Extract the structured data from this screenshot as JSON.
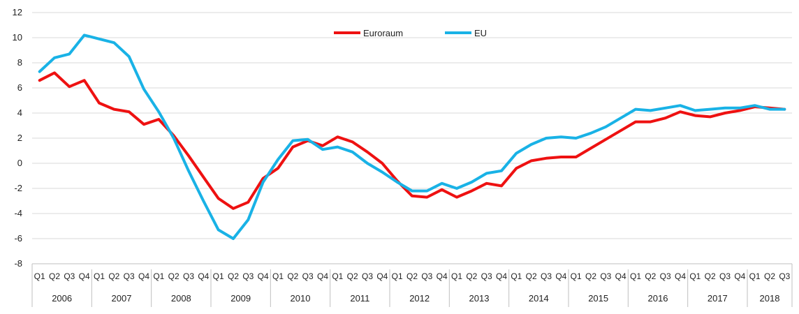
{
  "chart_data": {
    "type": "line",
    "title": "",
    "xlabel": "",
    "ylabel": "",
    "ylim": [
      -8,
      12
    ],
    "yticks": [
      -8,
      -6,
      -4,
      -2,
      0,
      2,
      4,
      6,
      8,
      10,
      12
    ],
    "grid": "horizontal",
    "legend_position": "top-center",
    "quarter_labels": [
      "Q1",
      "Q2",
      "Q3",
      "Q4"
    ],
    "years": [
      "2006",
      "2007",
      "2008",
      "2009",
      "2010",
      "2011",
      "2012",
      "2013",
      "2014",
      "2015",
      "2016",
      "2017",
      "2018"
    ],
    "categories": [
      "2006 Q1",
      "2006 Q2",
      "2006 Q3",
      "2006 Q4",
      "2007 Q1",
      "2007 Q2",
      "2007 Q3",
      "2007 Q4",
      "2008 Q1",
      "2008 Q2",
      "2008 Q3",
      "2008 Q4",
      "2009 Q1",
      "2009 Q2",
      "2009 Q3",
      "2009 Q4",
      "2010 Q1",
      "2010 Q2",
      "2010 Q3",
      "2010 Q4",
      "2011 Q1",
      "2011 Q2",
      "2011 Q3",
      "2011 Q4",
      "2012 Q1",
      "2012 Q2",
      "2012 Q3",
      "2012 Q4",
      "2013 Q1",
      "2013 Q2",
      "2013 Q3",
      "2013 Q4",
      "2014 Q1",
      "2014 Q2",
      "2014 Q3",
      "2014 Q4",
      "2015 Q1",
      "2015 Q2",
      "2015 Q3",
      "2015 Q4",
      "2016 Q1",
      "2016 Q2",
      "2016 Q3",
      "2016 Q4",
      "2017 Q1",
      "2017 Q2",
      "2017 Q3",
      "2017 Q4",
      "2018 Q1",
      "2018 Q2",
      "2018 Q3"
    ],
    "series": [
      {
        "name": "Euroraum",
        "color": "#ee1111",
        "values": [
          6.6,
          7.2,
          6.1,
          6.6,
          4.8,
          4.3,
          4.1,
          3.1,
          3.5,
          2.2,
          0.6,
          -1.1,
          -2.8,
          -3.6,
          -3.1,
          -1.2,
          -0.4,
          1.3,
          1.8,
          1.4,
          2.1,
          1.7,
          0.9,
          0.0,
          -1.4,
          -2.6,
          -2.7,
          -2.1,
          -2.7,
          -2.2,
          -1.6,
          -1.8,
          -0.4,
          0.2,
          0.4,
          0.5,
          0.5,
          1.2,
          1.9,
          2.6,
          3.3,
          3.3,
          3.6,
          4.1,
          3.8,
          3.7,
          4.0,
          4.2,
          4.5,
          4.4,
          4.3
        ]
      },
      {
        "name": "EU",
        "color": "#19b2e6",
        "values": [
          7.3,
          8.4,
          8.7,
          10.2,
          9.9,
          9.6,
          8.5,
          5.9,
          4.1,
          2.0,
          -0.6,
          -3.0,
          -5.3,
          -6.0,
          -4.5,
          -1.5,
          0.3,
          1.8,
          1.9,
          1.1,
          1.3,
          0.9,
          0.0,
          -0.7,
          -1.5,
          -2.2,
          -2.2,
          -1.6,
          -2.0,
          -1.5,
          -0.8,
          -0.6,
          0.8,
          1.5,
          2.0,
          2.1,
          2.0,
          2.4,
          2.9,
          3.6,
          4.3,
          4.2,
          4.4,
          4.6,
          4.2,
          4.3,
          4.4,
          4.4,
          4.6,
          4.3,
          4.3
        ]
      }
    ]
  }
}
